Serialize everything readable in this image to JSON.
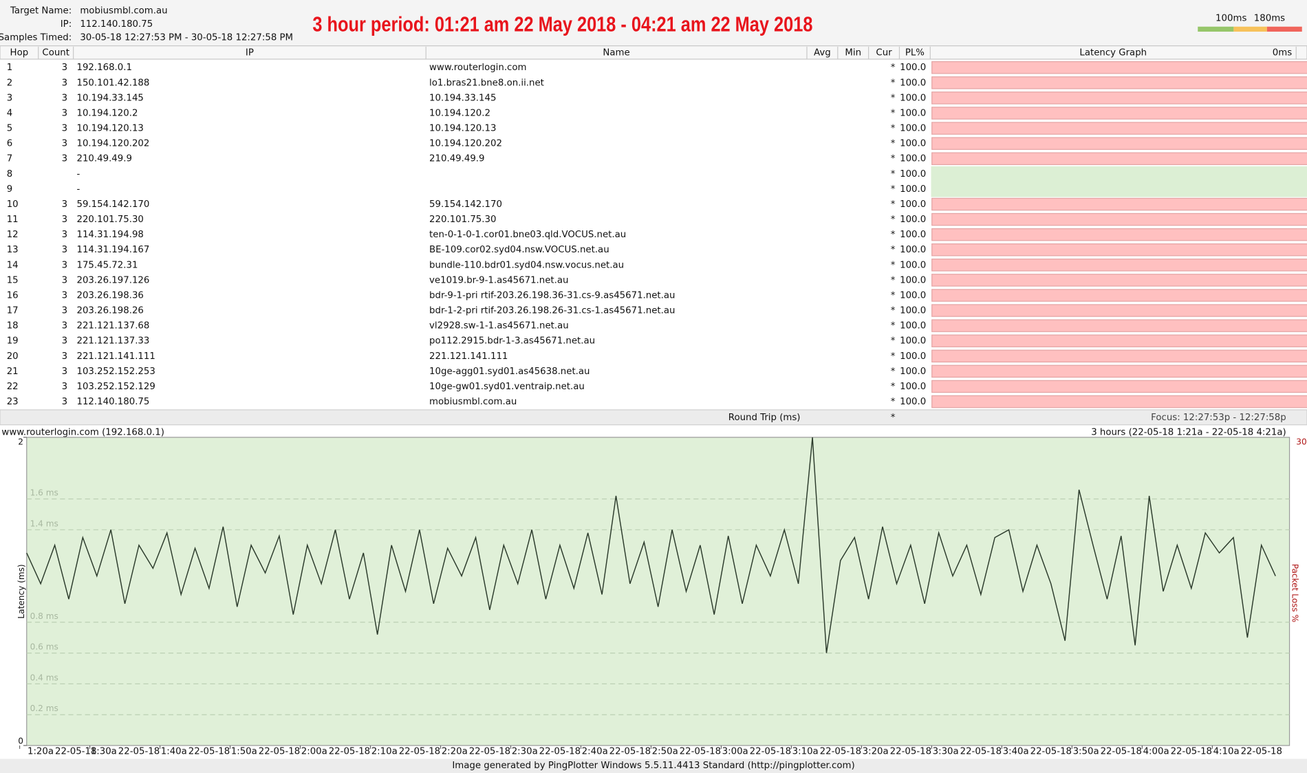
{
  "header": {
    "target_label": "Target Name:",
    "target": "mobiusmbl.com.au",
    "ip_label": "IP:",
    "ip": "112.140.180.75",
    "samples_label": "Samples Timed:",
    "samples": "30-05-18 12:27:53 PM - 30-05-18 12:27:58 PM",
    "banner": "3 hour period:  01:21 am 22 May 2018 - 04:21 am 22 May 2018",
    "scale_labels": [
      "100ms",
      "180ms"
    ]
  },
  "table": {
    "columns": [
      "Hop",
      "Count",
      "IP",
      "Name",
      "Avg",
      "Min",
      "Cur",
      "PL%",
      "Latency Graph"
    ],
    "graph_max": "0ms",
    "rows": [
      {
        "hop": 1,
        "count": 3,
        "ip": "192.168.0.1",
        "name": "www.routerlogin.com",
        "cur": "*",
        "pl": "100.0"
      },
      {
        "hop": 2,
        "count": 3,
        "ip": "150.101.42.188",
        "name": "lo1.bras21.bne8.on.ii.net",
        "cur": "*",
        "pl": "100.0"
      },
      {
        "hop": 3,
        "count": 3,
        "ip": "10.194.33.145",
        "name": "10.194.33.145",
        "cur": "*",
        "pl": "100.0"
      },
      {
        "hop": 4,
        "count": 3,
        "ip": "10.194.120.2",
        "name": "10.194.120.2",
        "cur": "*",
        "pl": "100.0"
      },
      {
        "hop": 5,
        "count": 3,
        "ip": "10.194.120.13",
        "name": "10.194.120.13",
        "cur": "*",
        "pl": "100.0"
      },
      {
        "hop": 6,
        "count": 3,
        "ip": "10.194.120.202",
        "name": "10.194.120.202",
        "cur": "*",
        "pl": "100.0"
      },
      {
        "hop": 7,
        "count": 3,
        "ip": "210.49.49.9",
        "name": "210.49.49.9",
        "cur": "*",
        "pl": "100.0"
      },
      {
        "hop": 8,
        "ip": "-",
        "cur": "*",
        "pl": "100.0"
      },
      {
        "hop": 9,
        "ip": "-",
        "cur": "*",
        "pl": "100.0"
      },
      {
        "hop": 10,
        "count": 3,
        "ip": "59.154.142.170",
        "name": "59.154.142.170",
        "cur": "*",
        "pl": "100.0"
      },
      {
        "hop": 11,
        "count": 3,
        "ip": "220.101.75.30",
        "name": "220.101.75.30",
        "cur": "*",
        "pl": "100.0"
      },
      {
        "hop": 12,
        "count": 3,
        "ip": "114.31.194.98",
        "name": "ten-0-1-0-1.cor01.bne03.qld.VOCUS.net.au",
        "cur": "*",
        "pl": "100.0"
      },
      {
        "hop": 13,
        "count": 3,
        "ip": "114.31.194.167",
        "name": "BE-109.cor02.syd04.nsw.VOCUS.net.au",
        "cur": "*",
        "pl": "100.0"
      },
      {
        "hop": 14,
        "count": 3,
        "ip": "175.45.72.31",
        "name": "bundle-110.bdr01.syd04.nsw.vocus.net.au",
        "cur": "*",
        "pl": "100.0"
      },
      {
        "hop": 15,
        "count": 3,
        "ip": "203.26.197.126",
        "name": "ve1019.br-9-1.as45671.net.au",
        "cur": "*",
        "pl": "100.0"
      },
      {
        "hop": 16,
        "count": 3,
        "ip": "203.26.198.36",
        "name": "bdr-9-1-pri rtif-203.26.198.36-31.cs-9.as45671.net.au",
        "cur": "*",
        "pl": "100.0"
      },
      {
        "hop": 17,
        "count": 3,
        "ip": "203.26.198.26",
        "name": "bdr-1-2-pri rtif-203.26.198.26-31.cs-1.as45671.net.au",
        "cur": "*",
        "pl": "100.0"
      },
      {
        "hop": 18,
        "count": 3,
        "ip": "221.121.137.68",
        "name": "vl2928.sw-1-1.as45671.net.au",
        "cur": "*",
        "pl": "100.0"
      },
      {
        "hop": 19,
        "count": 3,
        "ip": "221.121.137.33",
        "name": "po112.2915.bdr-1-3.as45671.net.au",
        "cur": "*",
        "pl": "100.0"
      },
      {
        "hop": 20,
        "count": 3,
        "ip": "221.121.141.111",
        "name": "221.121.141.111",
        "cur": "*",
        "pl": "100.0"
      },
      {
        "hop": 21,
        "count": 3,
        "ip": "103.252.152.253",
        "name": "10ge-agg01.syd01.as45638.net.au",
        "cur": "*",
        "pl": "100.0"
      },
      {
        "hop": 22,
        "count": 3,
        "ip": "103.252.152.129",
        "name": "10ge-gw01.syd01.ventraip.net.au",
        "cur": "*",
        "pl": "100.0"
      },
      {
        "hop": 23,
        "count": 3,
        "ip": "112.140.180.75",
        "name": "mobiusmbl.com.au",
        "cur": "*",
        "pl": "100.0"
      }
    ],
    "footer": {
      "label": "Round Trip (ms)",
      "cur": "*",
      "focus": "Focus: 12:27:53p - 12:27:58p"
    }
  },
  "chart_data": {
    "type": "line",
    "title": "www.routerlogin.com (192.168.0.1)",
    "range_label": "3 hours (22-05-18 1:21a - 22-05-18 4:21a)",
    "ylabel": "Latency (ms)",
    "y2label": "Packet Loss %",
    "y2max_label": "30",
    "color": "#2b3a2b",
    "xlim": [
      81,
      261
    ],
    "xticks": [
      {
        "value": 80,
        "label": "1:20a",
        "date": "22-05-18"
      },
      {
        "value": 90,
        "label": "1:30a",
        "date": "22-05-18"
      },
      {
        "value": 100,
        "label": "1:40a",
        "date": "22-05-18"
      },
      {
        "value": 110,
        "label": "1:50a",
        "date": "22-05-18"
      },
      {
        "value": 120,
        "label": "2:00a",
        "date": "22-05-18"
      },
      {
        "value": 130,
        "label": "2:10a",
        "date": "22-05-18"
      },
      {
        "value": 140,
        "label": "2:20a",
        "date": "22-05-18"
      },
      {
        "value": 150,
        "label": "2:30a",
        "date": "22-05-18"
      },
      {
        "value": 160,
        "label": "2:40a",
        "date": "22-05-18"
      },
      {
        "value": 170,
        "label": "2:50a",
        "date": "22-05-18"
      },
      {
        "value": 180,
        "label": "3:00a",
        "date": "22-05-18"
      },
      {
        "value": 190,
        "label": "3:10a",
        "date": "22-05-18"
      },
      {
        "value": 200,
        "label": "3:20a",
        "date": "22-05-18"
      },
      {
        "value": 210,
        "label": "3:30a",
        "date": "22-05-18"
      },
      {
        "value": 220,
        "label": "3:40a",
        "date": "22-05-18"
      },
      {
        "value": 230,
        "label": "3:50a",
        "date": "22-05-18"
      },
      {
        "value": 240,
        "label": "4:00a",
        "date": "22-05-18"
      },
      {
        "value": 250,
        "label": "4:10a",
        "date": "22-05-18"
      }
    ],
    "ylim": [
      0,
      2
    ],
    "yticks": [
      0,
      {
        "value": 0.2,
        "label": "0.2 ms"
      },
      {
        "value": 0.4,
        "label": "0.4 ms"
      },
      {
        "value": 0.6,
        "label": "0.6 ms"
      },
      {
        "value": 0.8,
        "label": "0.8 ms"
      },
      {
        "value": 1.4,
        "label": "1.4 ms"
      },
      {
        "value": 1.6,
        "label": "1.6 ms"
      },
      2
    ],
    "grid": true,
    "x": [
      81,
      83,
      85,
      87,
      89,
      91,
      93,
      95,
      97,
      99,
      101,
      103,
      105,
      107,
      109,
      111,
      113,
      115,
      117,
      119,
      121,
      123,
      125,
      127,
      129,
      131,
      133,
      135,
      137,
      139,
      141,
      143,
      145,
      147,
      149,
      151,
      153,
      155,
      157,
      159,
      161,
      163,
      165,
      167,
      169,
      171,
      173,
      175,
      177,
      179,
      181,
      183,
      185,
      187,
      189,
      191,
      193,
      195,
      197,
      199,
      201,
      203,
      205,
      207,
      209,
      211,
      213,
      215,
      217,
      219,
      221,
      223,
      225,
      227,
      229,
      231,
      233,
      235,
      237,
      239,
      241,
      243,
      245,
      247,
      249,
      251,
      253,
      255,
      257,
      259
    ],
    "values": [
      1.25,
      1.05,
      1.3,
      0.95,
      1.35,
      1.1,
      1.4,
      0.92,
      1.3,
      1.15,
      1.38,
      0.98,
      1.28,
      1.02,
      1.42,
      0.9,
      1.3,
      1.12,
      1.36,
      0.85,
      1.3,
      1.05,
      1.4,
      0.95,
      1.25,
      0.72,
      1.3,
      1.0,
      1.4,
      0.92,
      1.28,
      1.1,
      1.35,
      0.88,
      1.3,
      1.05,
      1.4,
      0.95,
      1.3,
      1.02,
      1.38,
      0.98,
      1.62,
      1.05,
      1.32,
      0.9,
      1.4,
      1.0,
      1.3,
      0.85,
      1.36,
      0.92,
      1.3,
      1.1,
      1.4,
      1.05,
      2.0,
      0.6,
      1.2,
      1.35,
      0.95,
      1.42,
      1.05,
      1.3,
      0.92,
      1.38,
      1.1,
      1.3,
      0.98,
      1.35,
      1.4,
      1.0,
      1.3,
      1.05,
      0.68,
      1.66,
      1.3,
      0.95,
      1.36,
      0.65,
      1.62,
      1.0,
      1.3,
      1.02,
      1.38,
      1.25,
      1.35,
      0.7,
      1.3,
      1.1
    ]
  },
  "credit": "Image generated by PingPlotter Windows 5.5.11.4413 Standard (http://pingplotter.com)"
}
